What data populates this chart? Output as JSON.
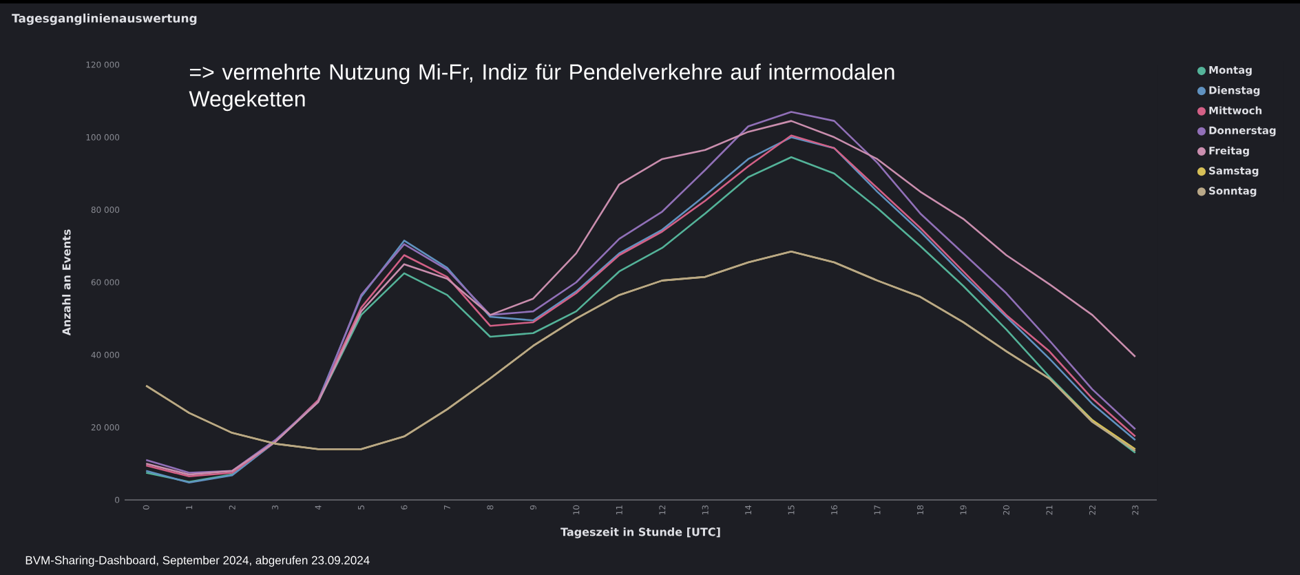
{
  "chart_data": {
    "type": "line",
    "title": "Tagesganglinienauswertung",
    "xlabel": "Tageszeit in Stunde [UTC]",
    "ylabel": "Anzahl an Events",
    "annotations": [
      "=> vermehrte Nutzung Mi-Fr, Indiz für Pendelverkehre auf intermodalen Wegeketten",
      "BVM-Sharing-Dashboard, September 2024, abgerufen 23.09.2024"
    ],
    "categories": [
      "0",
      "1",
      "2",
      "3",
      "4",
      "5",
      "6",
      "7",
      "8",
      "9",
      "10",
      "11",
      "12",
      "13",
      "14",
      "15",
      "16",
      "17",
      "18",
      "19",
      "20",
      "21",
      "22",
      "23"
    ],
    "series": [
      {
        "name": "Montag",
        "color": "#54b399",
        "values": [
          7500,
          5000,
          7000,
          16000,
          27000,
          51000,
          62500,
          56500,
          45000,
          46000,
          52000,
          63000,
          69500,
          79000,
          89000,
          94500,
          90000,
          80500,
          70000,
          59000,
          47000,
          34000,
          22000,
          13000
        ]
      },
      {
        "name": "Dienstag",
        "color": "#6092c0",
        "values": [
          8000,
          4800,
          6800,
          16000,
          27500,
          56000,
          71500,
          64000,
          50500,
          49500,
          57500,
          68000,
          74500,
          84000,
          94000,
          100000,
          97000,
          85000,
          74000,
          62000,
          50500,
          39000,
          26500,
          16500
        ]
      },
      {
        "name": "Mittwoch",
        "color": "#d36086",
        "values": [
          9500,
          6500,
          7500,
          16000,
          27500,
          53000,
          67500,
          61500,
          48000,
          49000,
          57000,
          67500,
          74000,
          82500,
          92000,
          100500,
          97000,
          86000,
          75000,
          63000,
          51000,
          41000,
          28000,
          17500
        ]
      },
      {
        "name": "Donnerstag",
        "color": "#9170b8",
        "values": [
          11000,
          7500,
          8000,
          16500,
          27000,
          56500,
          70500,
          63500,
          51000,
          52000,
          60000,
          72000,
          79500,
          91000,
          103000,
          107000,
          104500,
          93000,
          79000,
          68000,
          57000,
          44000,
          30500,
          19500
        ]
      },
      {
        "name": "Freitag",
        "color": "#ca8eae",
        "values": [
          10000,
          7000,
          8000,
          16000,
          27000,
          52000,
          65000,
          61000,
          51000,
          55500,
          68000,
          87000,
          94000,
          96500,
          101500,
          104500,
          100000,
          94000,
          85000,
          77500,
          67500,
          59500,
          51000,
          39500
        ]
      },
      {
        "name": "Samstag",
        "color": "#d6bf57",
        "values": [
          31500,
          24000,
          18500,
          15500,
          14000,
          14000,
          17500,
          25000,
          33500,
          42500,
          50000,
          56500,
          60500,
          61500,
          65500,
          68500,
          65500,
          60500,
          56000,
          49000,
          41000,
          33500,
          22000,
          14000
        ]
      },
      {
        "name": "Sonntag",
        "color": "#b9a888",
        "values": [
          31500,
          24000,
          18500,
          15500,
          14000,
          14000,
          17500,
          25000,
          33500,
          42500,
          50000,
          56500,
          60500,
          61500,
          65500,
          68500,
          65500,
          60500,
          56000,
          49000,
          41000,
          33500,
          21500,
          13500
        ]
      }
    ],
    "ylim": [
      0,
      120000
    ],
    "yticks": [
      {
        "value": 0,
        "label": "0"
      },
      {
        "value": 20000,
        "label": "20 000"
      },
      {
        "value": 40000,
        "label": "40 000"
      },
      {
        "value": 60000,
        "label": "60 000"
      },
      {
        "value": 80000,
        "label": "80 000"
      },
      {
        "value": 100000,
        "label": "100 000"
      },
      {
        "value": 120000,
        "label": "120 000"
      }
    ],
    "grid": false,
    "legend": "top right",
    "marker": "none",
    "line_style": "solid"
  }
}
